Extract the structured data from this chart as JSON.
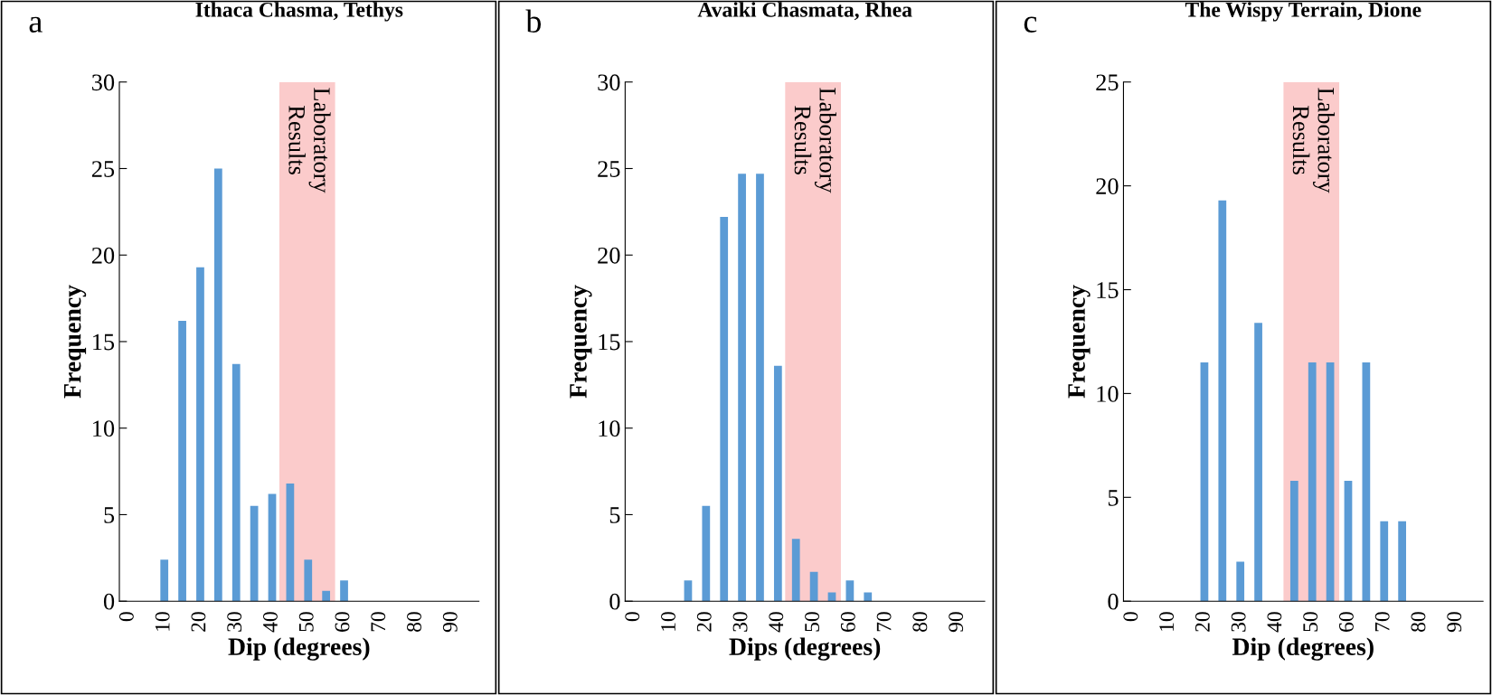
{
  "chart_data": [
    {
      "type": "bar",
      "title": "Ithaca Chasma, Tethys",
      "xlabel": "Dip (degrees)",
      "ylabel": "Frequency",
      "annotations": [
        "a"
      ],
      "x": [
        0,
        5,
        10,
        15,
        20,
        25,
        30,
        35,
        40,
        45,
        50,
        55,
        60,
        65,
        70,
        75,
        80,
        85,
        90,
        95
      ],
      "series": [
        {
          "color": "#5b9bd5",
          "values": [
            0,
            0,
            2.4,
            16.2,
            19.3,
            25.0,
            13.7,
            5.5,
            6.2,
            6.8,
            2.4,
            0.6,
            1.2,
            0,
            0,
            0,
            0,
            0,
            0,
            0
          ]
        }
      ],
      "xlim": [
        -2.5,
        97.5
      ],
      "xticks": [
        0,
        10,
        20,
        30,
        40,
        50,
        60,
        70,
        80,
        90
      ],
      "ylim": [
        0,
        30
      ],
      "yticks": [
        0,
        5,
        10,
        15,
        20,
        25,
        30
      ],
      "bands": [
        {
          "axis": "x",
          "from": 42,
          "to": 57.5,
          "label": "Laboratory\nResults",
          "color": "#f8a0a0"
        }
      ]
    },
    {
      "type": "bar",
      "title": "Avaiki Chasmata, Rhea",
      "xlabel": "Dips (degrees)",
      "ylabel": "Frequency",
      "annotations": [
        "b"
      ],
      "x": [
        0,
        5,
        10,
        15,
        20,
        25,
        30,
        35,
        40,
        45,
        50,
        55,
        60,
        65,
        70,
        75,
        80,
        85,
        90,
        95
      ],
      "series": [
        {
          "color": "#5b9bd5",
          "values": [
            0,
            0,
            0,
            1.2,
            5.5,
            22.2,
            24.7,
            24.7,
            13.6,
            3.6,
            1.7,
            0.5,
            1.2,
            0.5,
            0,
            0,
            0,
            0,
            0,
            0
          ]
        }
      ],
      "xlim": [
        -2.5,
        97.5
      ],
      "xticks": [
        0,
        10,
        20,
        30,
        40,
        50,
        60,
        70,
        80,
        90
      ],
      "ylim": [
        0,
        30
      ],
      "yticks": [
        0,
        5,
        10,
        15,
        20,
        25,
        30
      ],
      "bands": [
        {
          "axis": "x",
          "from": 42,
          "to": 57.5,
          "label": "Laboratory\nResults",
          "color": "#f8a0a0"
        }
      ]
    },
    {
      "type": "bar",
      "title": "The Wispy Terrain, Dione",
      "xlabel": "Dip (degrees)",
      "ylabel": "Frequency",
      "annotations": [
        "c"
      ],
      "x": [
        0,
        5,
        10,
        15,
        20,
        25,
        30,
        35,
        40,
        45,
        50,
        55,
        60,
        65,
        70,
        75,
        80,
        85,
        90,
        95
      ],
      "series": [
        {
          "color": "#5b9bd5",
          "values": [
            0,
            0,
            0,
            0,
            11.5,
            19.3,
            1.9,
            13.4,
            0,
            5.8,
            11.5,
            11.5,
            5.8,
            11.5,
            3.85,
            3.85,
            0,
            0,
            0,
            0
          ]
        }
      ],
      "xlim": [
        -2.5,
        97.5
      ],
      "xticks": [
        0,
        10,
        20,
        30,
        40,
        50,
        60,
        70,
        80,
        90
      ],
      "ylim": [
        0,
        25
      ],
      "yticks": [
        0,
        5,
        10,
        15,
        20,
        25
      ],
      "bands": [
        {
          "axis": "x",
          "from": 42,
          "to": 57.5,
          "label": "Laboratory\nResults",
          "color": "#f8a0a0"
        }
      ]
    }
  ]
}
